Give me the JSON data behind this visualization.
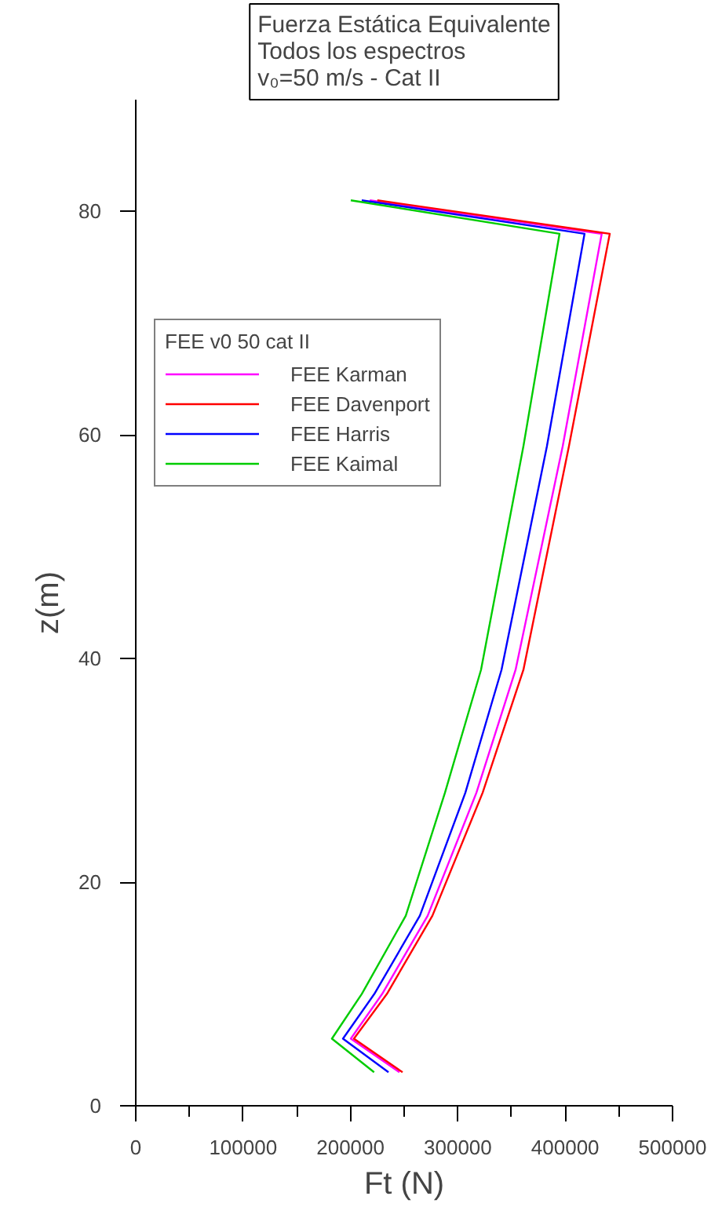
{
  "chart_data": {
    "type": "line",
    "title": "Fuerza Estática Equivalente\nTodos los espectros\nv₀=50 m/s - Cat II",
    "xlabel": "Ft (N)",
    "ylabel": "z(m)",
    "legend_title": "FEE v0 50 cat II",
    "legend": "top left",
    "grid": false,
    "marker": "none",
    "line_style": "solid",
    "xlim": [
      0,
      500000
    ],
    "ylim": [
      0,
      90
    ],
    "xticks": [
      0,
      {
        "value": 50000,
        "label": null
      },
      100000,
      {
        "value": 150000,
        "label": null
      },
      200000,
      {
        "value": 250000,
        "label": null
      },
      300000,
      {
        "value": 350000,
        "label": null
      },
      400000,
      {
        "value": 450000,
        "label": null
      },
      500000
    ],
    "yticks": [
      0,
      20,
      40,
      60,
      80
    ],
    "series": [
      {
        "name": "FEE Karman",
        "color": "#ff00ff",
        "x": [
          245600,
          200300,
          229500,
          271900,
          317300,
          353800,
          397700,
          434000,
          218000
        ],
        "values": [
          3,
          6,
          10,
          17,
          28,
          39,
          59,
          78,
          81
        ]
      },
      {
        "name": "FEE Davenport",
        "color": "#ff0000",
        "x": [
          248500,
          203200,
          233900,
          276300,
          323100,
          361100,
          403500,
          441500,
          225000
        ],
        "values": [
          3,
          6,
          10,
          17,
          28,
          39,
          59,
          78,
          81
        ]
      },
      {
        "name": "FEE Harris",
        "color": "#0000ff",
        "x": [
          235400,
          193000,
          222200,
          264600,
          307000,
          340700,
          383000,
          418000,
          210500
        ],
        "values": [
          3,
          6,
          10,
          17,
          28,
          39,
          59,
          78,
          81
        ]
      },
      {
        "name": "FEE Kaimal",
        "color": "#00cc00",
        "x": [
          222000,
          182700,
          210500,
          251500,
          288000,
          321600,
          361100,
          394700,
          200300
        ],
        "values": [
          3,
          6,
          10,
          17,
          28,
          39,
          59,
          78,
          81
        ]
      }
    ]
  }
}
